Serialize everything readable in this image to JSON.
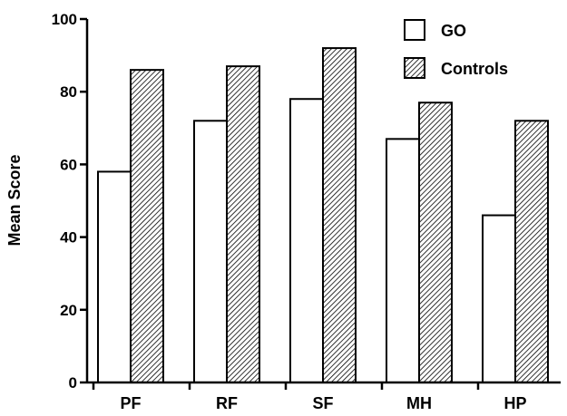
{
  "chart_data": {
    "type": "bar",
    "title": "",
    "xlabel": "",
    "ylabel": "Mean Score",
    "ylim": [
      0,
      100
    ],
    "yticks": [
      0,
      20,
      40,
      60,
      80,
      100
    ],
    "grid": false,
    "legend_position": "top-right",
    "categories": [
      "PF",
      "RF",
      "SF",
      "MH",
      "HP"
    ],
    "series": [
      {
        "name": "GO",
        "values": [
          58,
          72,
          78,
          67,
          46
        ],
        "fill": "plain",
        "color": "#ffffff"
      },
      {
        "name": "Controls",
        "values": [
          86,
          87,
          92,
          77,
          72
        ],
        "fill": "diagonal-hatch",
        "color": "#000000"
      }
    ]
  }
}
